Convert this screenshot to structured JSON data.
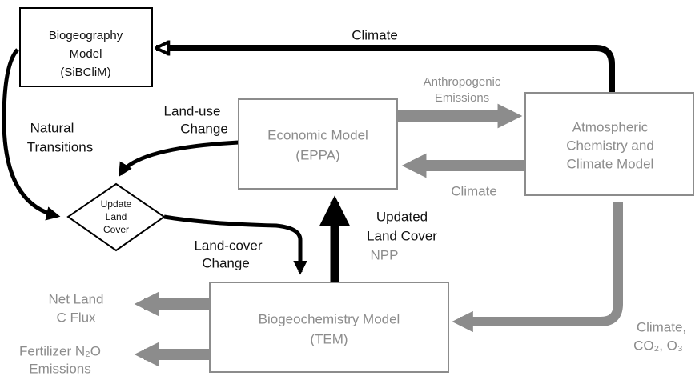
{
  "nodes": {
    "biogeography": [
      "Biogeography",
      "Model",
      "(SiBCliM)"
    ],
    "economic": [
      "Economic Model",
      "(EPPA)"
    ],
    "atmospheric": [
      "Atmospheric",
      "Chemistry and",
      "Climate Model"
    ],
    "biogeochemistry": [
      "Biogeochemistry Model",
      "(TEM)"
    ],
    "update": [
      "Update",
      "Land",
      "Cover"
    ]
  },
  "edges": {
    "climate_top": "Climate",
    "anthropogenic": [
      "Anthropogenic",
      "Emissions"
    ],
    "climate_return": "Climate",
    "land_use": [
      "Land-use",
      "Change"
    ],
    "natural": [
      "Natural",
      "Transitions"
    ],
    "land_cover": [
      "Land-cover",
      "Change"
    ],
    "updated": [
      "Updated",
      "Land Cover"
    ],
    "npp": "NPP",
    "net_flux": [
      "Net Land",
      "C Flux"
    ],
    "fertilizer": [
      "Fertilizer N₂O",
      "Emissions"
    ],
    "climate_out": [
      "Climate,",
      "CO₂, O₃"
    ]
  }
}
